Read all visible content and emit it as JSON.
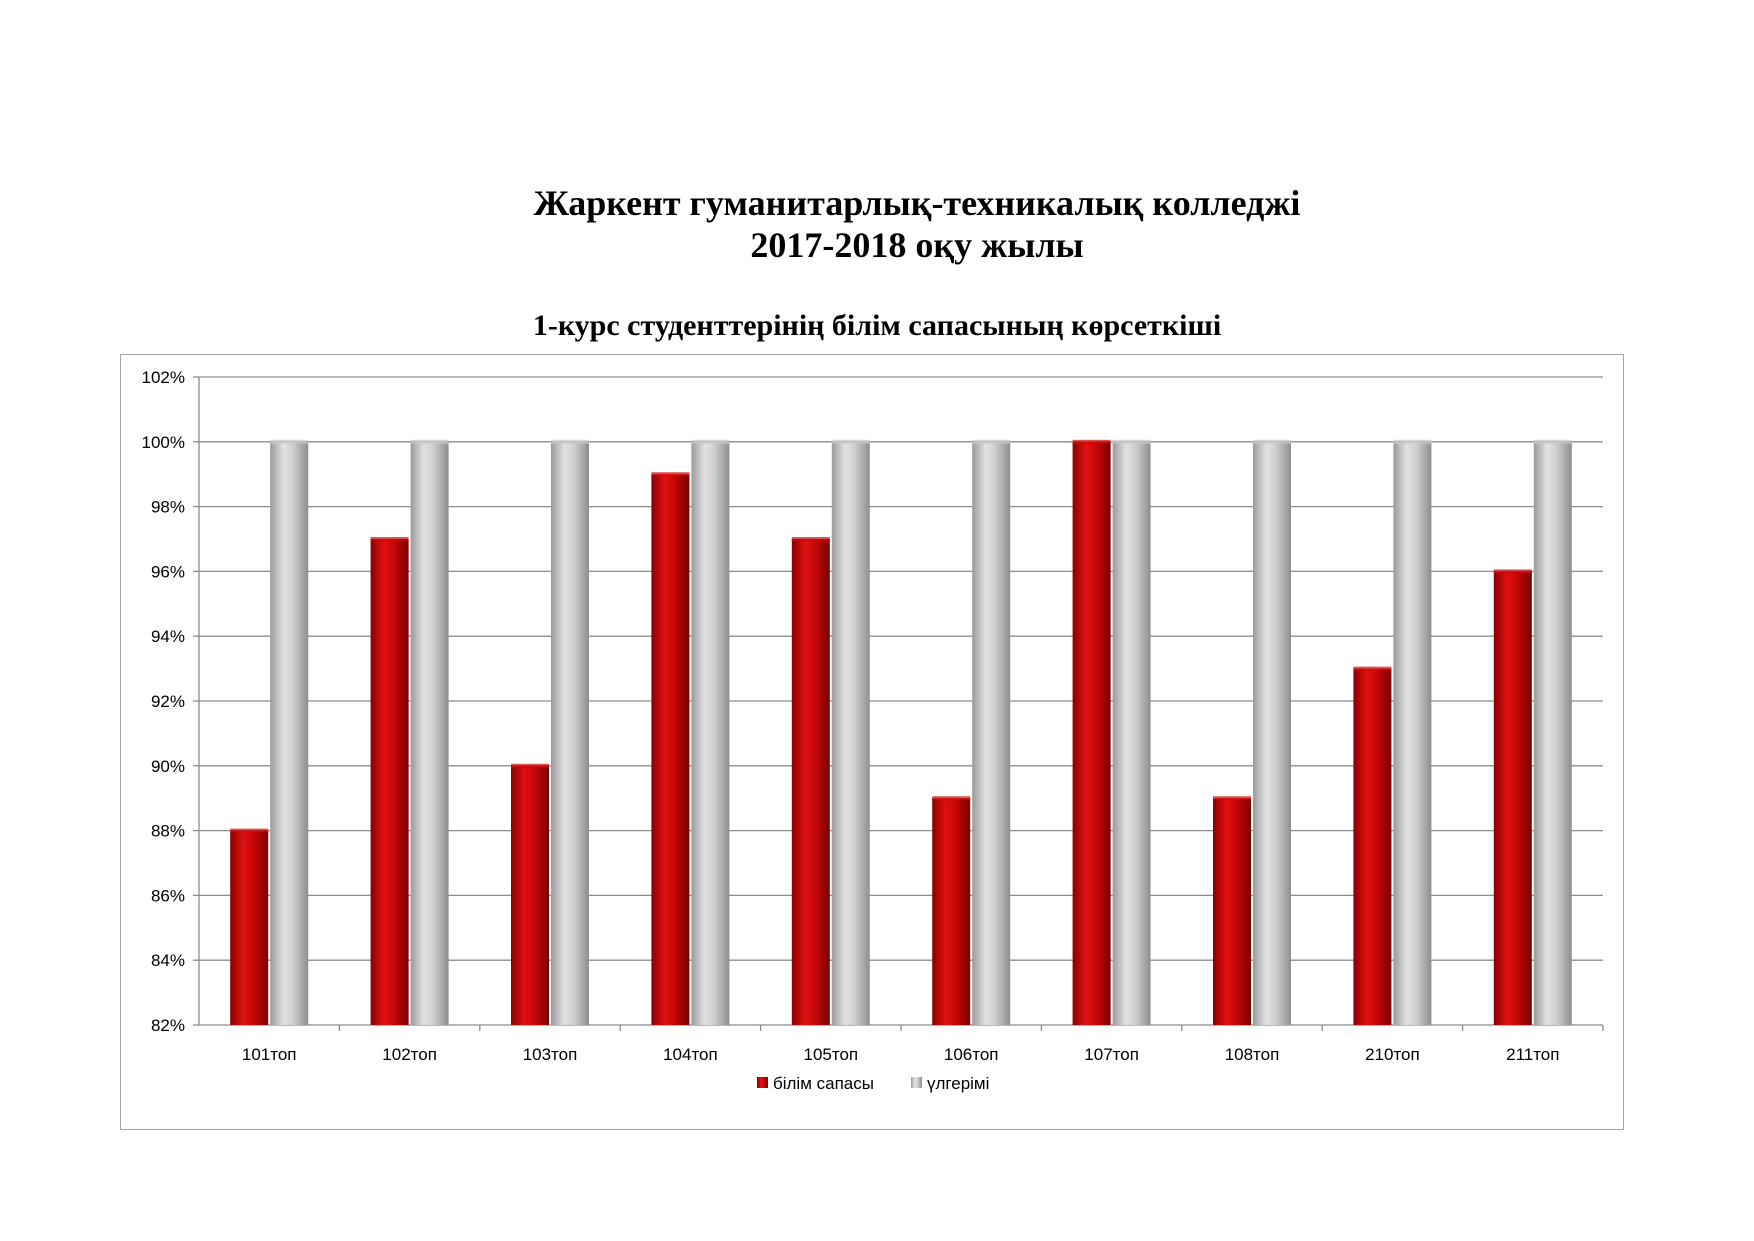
{
  "header": {
    "title_line1": "Жаркент гуманитарлық-техникалық  колледжі",
    "title_line2": "2017-2018 оқу жылы",
    "subtitle": "1-курс студенттерінің білім   сапасының көрсеткіші"
  },
  "colors": {
    "series1": "#cc0a0a",
    "series2": "#c8c8c8",
    "grid": "#8c8c8c"
  },
  "chart_data": {
    "type": "bar",
    "categories": [
      "101топ",
      "102топ",
      "103топ",
      "104топ",
      "105топ",
      "106топ",
      "107топ",
      "108топ",
      "210топ",
      "211топ"
    ],
    "series": [
      {
        "name": "білім сапасы",
        "values": [
          88,
          97,
          90,
          99,
          97,
          89,
          100,
          89,
          93,
          96
        ]
      },
      {
        "name": "үлгерімі",
        "values": [
          100,
          100,
          100,
          100,
          100,
          100,
          100,
          100,
          100,
          100
        ]
      }
    ],
    "yticks": [
      "82%",
      "84%",
      "86%",
      "88%",
      "90%",
      "92%",
      "94%",
      "96%",
      "98%",
      "100%",
      "102%"
    ],
    "ylim": [
      82,
      102
    ],
    "ystep": 2,
    "grid": true,
    "legend_position": "bottom"
  }
}
